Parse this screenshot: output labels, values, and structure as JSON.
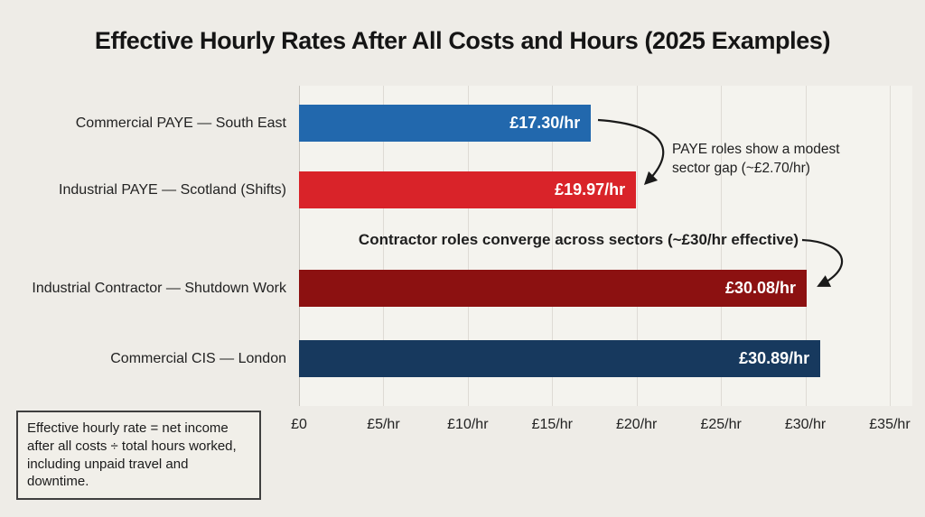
{
  "colors": {
    "page_bg": "#eeece7",
    "plot_bg": "#f4f3ee",
    "gridline": "#dedbd5",
    "axis_line": "#c8c5bf",
    "text": "#1c1c1c",
    "value_label_text": "#ffffff",
    "arrow": "#1a1a1a",
    "note_border": "#3f3f3f",
    "note_bg": "#f1efe9"
  },
  "chart_data": {
    "type": "bar",
    "orientation": "horizontal",
    "title": "Effective Hourly Rates After All Costs and Hours (2025 Examples)",
    "xlabel": "",
    "ylabel": "",
    "xlim": [
      0,
      36.3
    ],
    "grid": true,
    "legend": "none",
    "categories": [
      "Commercial PAYE — South East",
      "Industrial PAYE — Scotland (Shifts)",
      "Industrial Contractor — Shutdown Work",
      "Commercial CIS — London"
    ],
    "values": [
      17.3,
      19.97,
      30.08,
      30.89
    ],
    "value_labels": [
      "£17.30/hr",
      "£19.97/hr",
      "£30.08/hr",
      "£30.89/hr"
    ],
    "bar_colors": [
      "#2268ad",
      "#d92329",
      "#8c1111",
      "#17395e"
    ],
    "ticks": [
      {
        "value": 0,
        "label": "£0"
      },
      {
        "value": 5,
        "label": "£5/hr"
      },
      {
        "value": 10,
        "label": "£10/hr"
      },
      {
        "value": 15,
        "label": "£15/hr"
      },
      {
        "value": 20,
        "label": "£20/hr"
      },
      {
        "value": 25,
        "label": "£25/hr"
      },
      {
        "value": 30,
        "label": "£30/hr"
      },
      {
        "value": 35,
        "label": "£35/hr"
      }
    ],
    "annotations": [
      {
        "id": "paye-gap",
        "text": "PAYE roles show a modest sector gap (~£2.70/hr)",
        "points_to": "Industrial PAYE — Scotland (Shifts)"
      },
      {
        "id": "contractor-converge",
        "text": "Contractor roles converge across sectors (~£30/hr effective)",
        "points_to": "Industrial Contractor — Shutdown Work"
      }
    ],
    "footnote": "Effective hourly rate = net income after all costs ÷ total hours worked, including unpaid travel and downtime."
  }
}
